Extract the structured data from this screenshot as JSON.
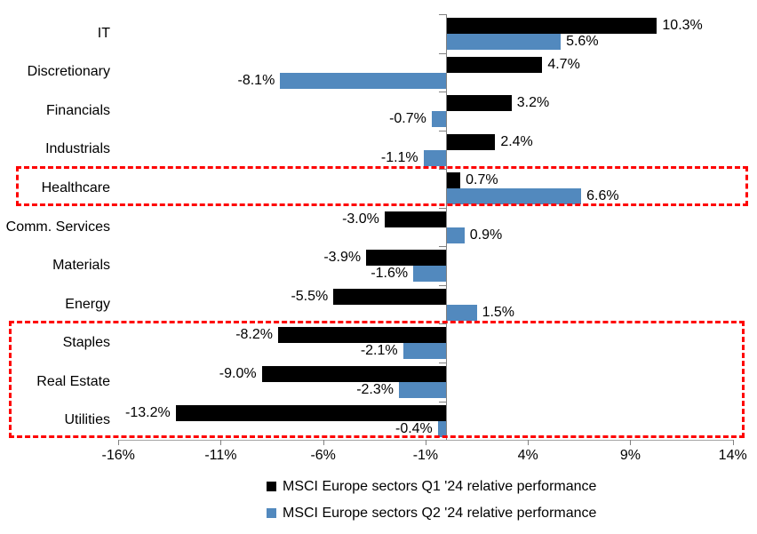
{
  "chart_data": {
    "type": "bar",
    "orientation": "horizontal",
    "title": "",
    "categories": [
      "IT",
      "Discretionary",
      "Financials",
      "Industrials",
      "Healthcare",
      "Comm. Services",
      "Materials",
      "Energy",
      "Staples",
      "Real Estate",
      "Utilities"
    ],
    "series": [
      {
        "name": "MSCI Europe sectors Q1 '24 relative performance",
        "color": "#000000",
        "values": [
          10.3,
          4.7,
          3.2,
          2.4,
          0.7,
          -3.0,
          -3.9,
          -5.5,
          -8.2,
          -9.0,
          -13.2
        ],
        "labels": [
          "10.3%",
          "4.7%",
          "3.2%",
          "2.4%",
          "0.7%",
          "-3.0%",
          "-3.9%",
          "-5.5%",
          "-8.2%",
          "-9.0%",
          "-13.2%"
        ]
      },
      {
        "name": "MSCI Europe sectors Q2 '24 relative performance",
        "color": "#5289BE",
        "values": [
          5.6,
          -8.1,
          -0.7,
          -1.1,
          6.6,
          0.9,
          -1.6,
          1.5,
          -2.1,
          -2.3,
          -0.4
        ],
        "labels": [
          "5.6%",
          "-8.1%",
          "-0.7%",
          "-1.1%",
          "6.6%",
          "0.9%",
          "-1.6%",
          "1.5%",
          "-2.1%",
          "-2.3%",
          "-0.4%"
        ]
      }
    ],
    "x_ticks": [
      -16,
      -11,
      -6,
      -1,
      4,
      9,
      14
    ],
    "x_tick_labels": [
      "-16%",
      "-11%",
      "-6%",
      "-1%",
      "4%",
      "9%",
      "14%"
    ],
    "xlim": [
      -16,
      14
    ],
    "data_labels": true,
    "grid": false,
    "legend_position": "bottom",
    "highlight_boxes": [
      {
        "categories": [
          "Healthcare"
        ],
        "color": "#fe0000"
      },
      {
        "categories": [
          "Staples",
          "Real Estate",
          "Utilities"
        ],
        "color": "#fe0000"
      }
    ]
  }
}
